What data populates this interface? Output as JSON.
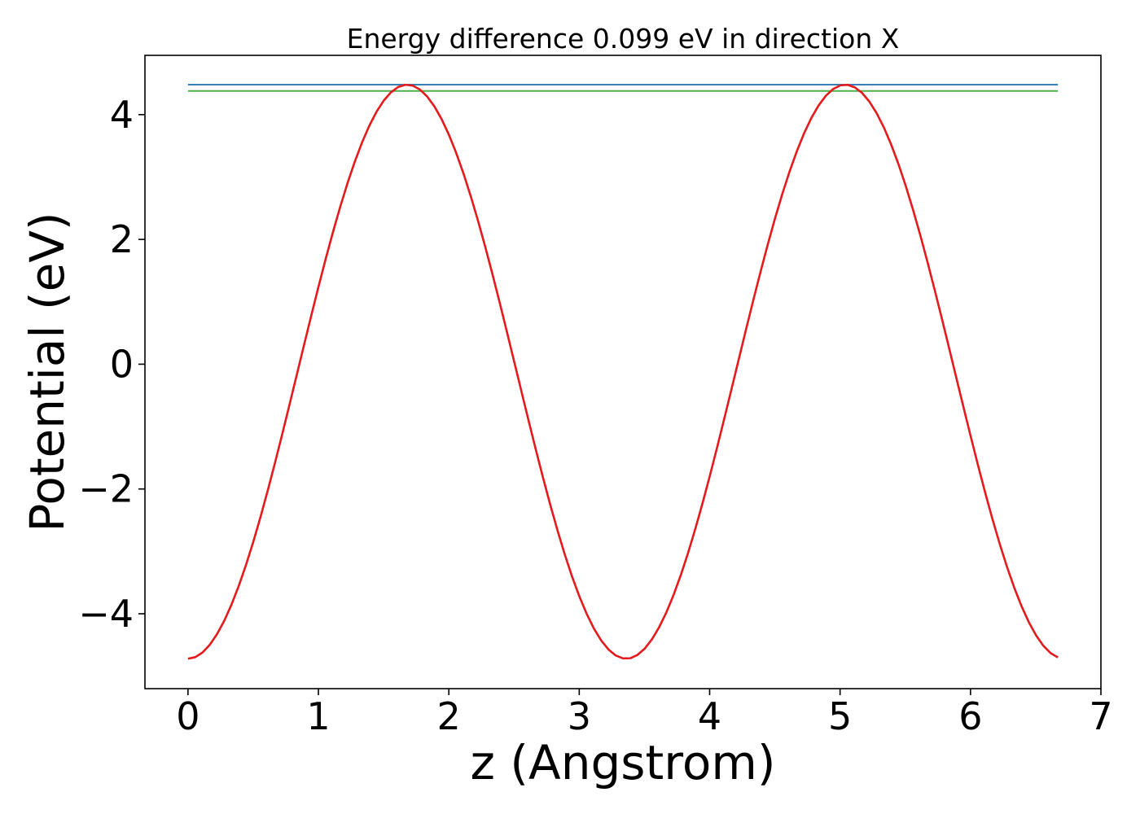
{
  "chart_data": {
    "type": "line",
    "title": "Energy difference 0.099 eV in direction X",
    "xlabel": "z (Angstrom)",
    "ylabel": "Potential (eV)",
    "xlim": [
      -0.33,
      7.0
    ],
    "ylim": [
      -5.2,
      4.95
    ],
    "xticks": [
      0,
      1,
      2,
      3,
      4,
      5,
      6,
      7
    ],
    "xtick_labels": [
      "0",
      "1",
      "2",
      "3",
      "4",
      "5",
      "6",
      "7"
    ],
    "yticks": [
      -4,
      -2,
      0,
      2,
      4
    ],
    "ytick_labels": [
      "−4",
      "−2",
      "0",
      "2",
      "4"
    ],
    "grid": false,
    "colors": {
      "potential": "#e41a1c",
      "max_line": "#377eb8",
      "avg_line": "#4daf4a",
      "axes": "#000000"
    },
    "series": [
      {
        "kind": "sinusoid",
        "x_start": 0.0,
        "x_end": 6.67,
        "samples": 121,
        "mean": -0.12,
        "amplitude": 4.6,
        "period": 3.36,
        "min_at": 0.0
      },
      {
        "kind": "hline",
        "x_start": 0.0,
        "x_end": 6.67,
        "y": 4.48
      },
      {
        "kind": "hline",
        "x_start": 0.0,
        "x_end": 6.67,
        "y": 4.38
      }
    ]
  }
}
